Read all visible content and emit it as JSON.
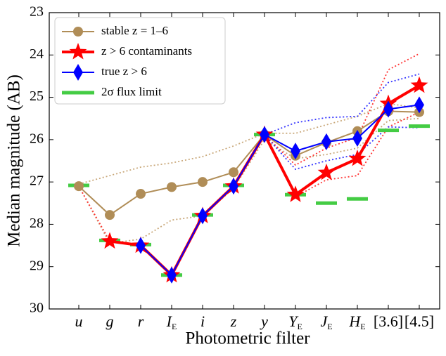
{
  "chart_data": {
    "type": "line",
    "x_label": "Photometric filter",
    "y_label": "Median magnitude (AB)",
    "categories": [
      "u",
      "g",
      "r",
      "I",
      "i",
      "z",
      "y",
      "Y",
      "J",
      "H",
      "[3.6]",
      "[4.5]"
    ],
    "category_subscripts": [
      null,
      null,
      null,
      "E",
      null,
      null,
      null,
      "E",
      "E",
      "E",
      null,
      null
    ],
    "ylim": [
      23,
      30
    ],
    "y_inverted": true,
    "yticks": [
      23,
      24,
      25,
      26,
      27,
      28,
      29,
      30
    ],
    "series": [
      {
        "name": "stable z = 1–6",
        "color": "#b08d57",
        "marker": "circle",
        "values": [
          27.1,
          27.78,
          27.28,
          27.12,
          27.0,
          26.77,
          25.88,
          26.38,
          26.07,
          25.8,
          25.33,
          25.35
        ]
      },
      {
        "name": "z > 6 contaminants",
        "color": "#ff0000",
        "marker": "star",
        "values": [
          null,
          28.4,
          28.5,
          29.2,
          27.8,
          27.1,
          25.88,
          27.3,
          26.78,
          26.45,
          25.15,
          24.72
        ]
      },
      {
        "name": "true z > 6",
        "color": "#0000ff",
        "marker": "diamond",
        "values": [
          null,
          null,
          28.5,
          29.2,
          27.8,
          27.1,
          25.88,
          26.27,
          26.05,
          25.97,
          25.28,
          25.18
        ]
      },
      {
        "name": "2σ flux limit",
        "color": "#44cc44",
        "marker": "dash",
        "values": [
          27.08,
          28.38,
          28.48,
          29.2,
          27.78,
          27.08,
          25.88,
          27.3,
          27.5,
          27.4,
          25.78,
          25.68
        ]
      }
    ],
    "bands": [
      {
        "color": "#c9a87a",
        "values": [
          27.05,
          26.85,
          26.65,
          26.55,
          26.4,
          26.15,
          25.85,
          25.85,
          25.65,
          25.45,
          25.15,
          25.25
        ]
      },
      {
        "color": "#c9a87a",
        "values": [
          27.1,
          28.45,
          28.35,
          27.9,
          27.8,
          27.15,
          26.0,
          26.45,
          26.35,
          26.2,
          25.55,
          25.5
        ]
      },
      {
        "color": "#ff3333",
        "values": [
          27.1,
          28.4,
          null,
          null,
          null,
          null,
          25.88,
          26.6,
          26.2,
          25.95,
          24.35,
          23.97
        ]
      },
      {
        "color": "#ff3333",
        "values": [
          null,
          null,
          null,
          null,
          null,
          null,
          25.88,
          27.35,
          26.95,
          26.85,
          25.7,
          25.35
        ]
      },
      {
        "color": "#3333ff",
        "values": [
          null,
          null,
          null,
          null,
          null,
          null,
          25.88,
          25.6,
          25.48,
          25.45,
          24.65,
          24.45
        ]
      },
      {
        "color": "#3333ff",
        "values": [
          null,
          null,
          null,
          null,
          null,
          null,
          25.88,
          26.7,
          26.5,
          26.35,
          25.7,
          25.72
        ]
      }
    ]
  }
}
